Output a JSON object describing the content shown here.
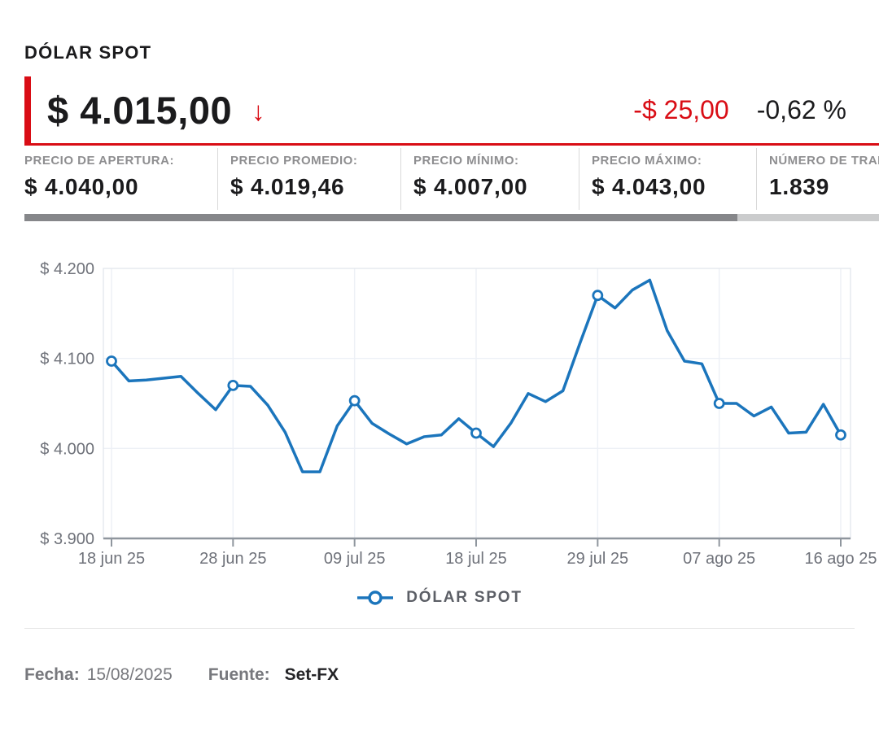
{
  "header": {
    "title": "DÓLAR SPOT",
    "price": "$ 4.015,00",
    "arrow": "↓",
    "change_value": "-$ 25,00",
    "change_percent": "-0,62 %"
  },
  "stats": [
    {
      "label": "PRECIO DE APERTURA:",
      "value": "$ 4.040,00"
    },
    {
      "label": "PRECIO PROMEDIO:",
      "value": "$ 4.019,46"
    },
    {
      "label": "PRECIO MÍNIMO:",
      "value": "$ 4.007,00"
    },
    {
      "label": "PRECIO MÁXIMO:",
      "value": "$ 4.043,00"
    },
    {
      "label": "NÚMERO DE TRANSACCIONES:",
      "value": "1.839"
    }
  ],
  "colors": {
    "accent_red": "#d90d15",
    "line_blue": "#1b75bc",
    "grid": "#edf0f6",
    "plot_border": "#e4e8ee",
    "axis": "#8f969e",
    "axis_label": "#6f727a"
  },
  "chart_data": {
    "type": "line",
    "title": "",
    "xlabel": "",
    "ylabel": "",
    "ylim": [
      3900,
      4200
    ],
    "grid": true,
    "legend_position": "bottom",
    "legend_label": "DÓLAR SPOT",
    "line_color": "#1b75bc",
    "y_tick_labels": [
      "$ 4.200",
      "$ 4.100",
      "$ 4.000",
      "$ 3.900"
    ],
    "y_tick_values": [
      4200,
      4100,
      4000,
      3900
    ],
    "x_tick_labels": [
      "18 jun 25",
      "28 jun 25",
      "09 jul 25",
      "18 jul 25",
      "29 jul 25",
      "07 ago 25",
      "16 ago 25"
    ],
    "x_tick_indices": [
      0,
      7,
      14,
      21,
      28,
      35,
      42
    ],
    "marker_indices": [
      0,
      7,
      14,
      21,
      28,
      35,
      42
    ],
    "series": [
      {
        "name": "DÓLAR SPOT",
        "values": [
          4097,
          4075,
          4076,
          4078,
          4080,
          4061,
          4043,
          4070,
          4069,
          4048,
          4018,
          3974,
          3974,
          4025,
          4053,
          4028,
          4016,
          4005,
          4013,
          4015,
          4033,
          4017,
          4002,
          4028,
          4061,
          4052,
          4064,
          4118,
          4170,
          4156,
          4176,
          4187,
          4131,
          4097,
          4094,
          4050,
          4050,
          4036,
          4046,
          4017,
          4018,
          4049,
          4015
        ]
      }
    ]
  },
  "footer": {
    "fecha_label": "Fecha:",
    "fecha_value": "15/08/2025",
    "fuente_label": "Fuente:",
    "fuente_value": "Set-FX"
  }
}
